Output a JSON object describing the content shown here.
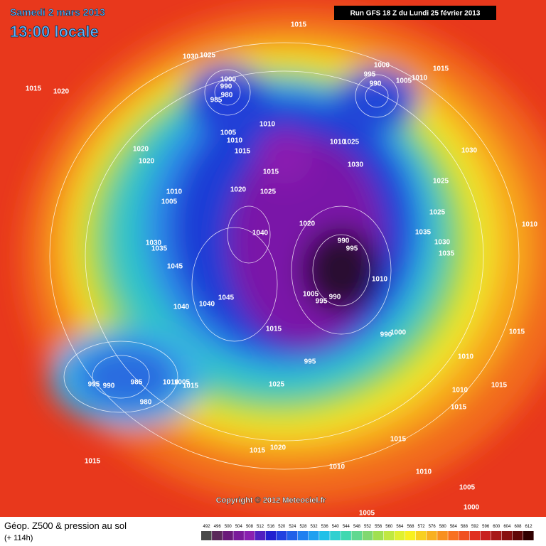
{
  "header": {
    "date": "Samedi 2 mars 2013",
    "time": "13:00 locale",
    "run": "Run GFS 18 Z du Lundi 25 février 2013"
  },
  "copyright": "Copyright © 2012 Meteociel.fr",
  "footer": {
    "title": "Géop. Z500 & pression au sol",
    "lead": "(+ 114h)"
  },
  "scale": [
    492,
    496,
    500,
    504,
    508,
    512,
    516,
    520,
    524,
    528,
    532,
    536,
    540,
    544,
    548,
    552,
    556,
    560,
    564,
    568,
    572,
    576,
    580,
    584,
    588,
    592,
    596,
    600,
    604,
    608,
    612
  ],
  "isobar_labels": [
    "1015",
    "1030",
    "1025",
    "1015",
    "1020",
    "1000",
    "995",
    "990",
    "1005",
    "1010",
    "1015",
    "1000",
    "990",
    "980",
    "985",
    "1010",
    "1005",
    "1010",
    "1015",
    "1025",
    "1010",
    "1030",
    "1030",
    "1025",
    "1015",
    "1020",
    "1020",
    "1010",
    "1005",
    "1020",
    "1025",
    "1025",
    "1010",
    "1040",
    "1020",
    "990",
    "995",
    "1035",
    "1030",
    "1035",
    "1030",
    "1035",
    "1045",
    "1010",
    "1045",
    "1040",
    "1040",
    "1005",
    "990",
    "995",
    "1015",
    "990",
    "1000",
    "1015",
    "995",
    "1010",
    "995",
    "990",
    "985",
    "1010",
    "1005",
    "1015",
    "980",
    "1025",
    "1010",
    "1015",
    "1015",
    "1015",
    "1015",
    "1020",
    "1010",
    "1010",
    "1015",
    "1005",
    "1000",
    "1005"
  ]
}
